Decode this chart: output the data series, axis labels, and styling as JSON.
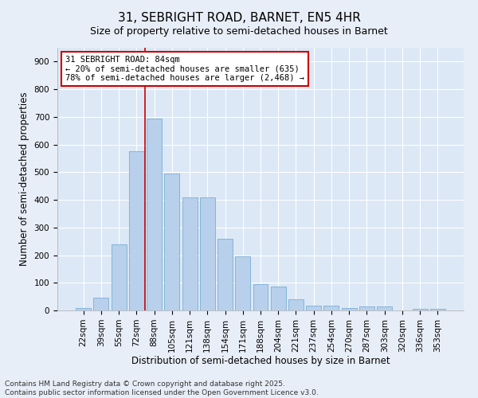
{
  "title": "31, SEBRIGHT ROAD, BARNET, EN5 4HR",
  "subtitle": "Size of property relative to semi-detached houses in Barnet",
  "xlabel": "Distribution of semi-detached houses by size in Barnet",
  "ylabel": "Number of semi-detached properties",
  "categories": [
    "22sqm",
    "39sqm",
    "55sqm",
    "72sqm",
    "88sqm",
    "105sqm",
    "121sqm",
    "138sqm",
    "154sqm",
    "171sqm",
    "188sqm",
    "204sqm",
    "221sqm",
    "237sqm",
    "254sqm",
    "270sqm",
    "287sqm",
    "303sqm",
    "320sqm",
    "336sqm",
    "353sqm"
  ],
  "values": [
    10,
    45,
    240,
    575,
    695,
    495,
    410,
    410,
    260,
    195,
    95,
    85,
    40,
    18,
    18,
    10,
    13,
    13,
    0,
    5,
    5
  ],
  "bar_color": "#b8d0eb",
  "bar_edge_color": "#7aaed6",
  "marker_bin_index": 4,
  "marker_color": "#cc0000",
  "annotation_text": "31 SEBRIGHT ROAD: 84sqm\n← 20% of semi-detached houses are smaller (635)\n78% of semi-detached houses are larger (2,468) →",
  "annotation_box_color": "#ffffff",
  "annotation_box_edge": "#cc0000",
  "ylim": [
    0,
    950
  ],
  "yticks": [
    0,
    100,
    200,
    300,
    400,
    500,
    600,
    700,
    800,
    900
  ],
  "bg_color": "#e8eef8",
  "plot_bg_color": "#dce8f5",
  "footer": "Contains HM Land Registry data © Crown copyright and database right 2025.\nContains public sector information licensed under the Open Government Licence v3.0.",
  "title_fontsize": 11,
  "subtitle_fontsize": 9,
  "axis_label_fontsize": 8.5,
  "tick_fontsize": 7.5,
  "annotation_fontsize": 7.5,
  "footer_fontsize": 6.5
}
